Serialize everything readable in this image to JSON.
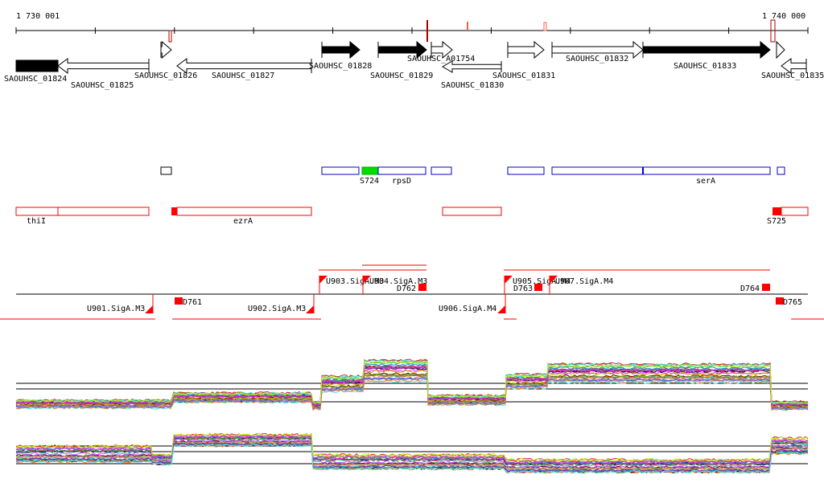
{
  "ruler": {
    "start_label": "1 730 001",
    "end_label": "1 740 000"
  },
  "genes": [
    {
      "id": "SAOUHSC_01824",
      "strand": "-",
      "filled": true
    },
    {
      "id": "SAOUHSC_01825",
      "strand": "-",
      "filled": false
    },
    {
      "id": "SAOUHSC_01826",
      "strand": "+",
      "filled": false
    },
    {
      "id": "SAOUHSC_01827",
      "strand": "-",
      "filled": false
    },
    {
      "id": "SAOUHSC_01828",
      "strand": "+",
      "filled": true
    },
    {
      "id": "SAOUHSC_01829",
      "strand": "+",
      "filled": true
    },
    {
      "id": "SAOUHSC_A01754",
      "strand": "+",
      "filled": false
    },
    {
      "id": "SAOUHSC_01830",
      "strand": "-",
      "filled": false
    },
    {
      "id": "SAOUHSC_01831",
      "strand": "+",
      "filled": false
    },
    {
      "id": "SAOUHSC_01832",
      "strand": "+",
      "filled": false
    },
    {
      "id": "SAOUHSC_01833",
      "strand": "+",
      "filled": true
    },
    {
      "id": "SAOUHSC_01835",
      "strand": "-",
      "filled": false
    }
  ],
  "annotation_track": {
    "labels": [
      "S724",
      "rpsD",
      "serA"
    ],
    "colors": {
      "blue": "#0000cc",
      "green": "#00dd00"
    }
  },
  "operon_track": {
    "labels": [
      "thiI",
      "ezrA",
      "S725"
    ],
    "color": "#ff0000"
  },
  "regulatory_track": {
    "upstream": [
      "U901.SigA.M3",
      "U902.SigA.M3",
      "U903.SigA.M3",
      "U904.SigA.M3",
      "U905.SigA.M4",
      "U906.SigA.M4",
      "U907.SigA.M4"
    ],
    "downstream": [
      "D761",
      "D762",
      "D763",
      "D764",
      "D765"
    ]
  }
}
